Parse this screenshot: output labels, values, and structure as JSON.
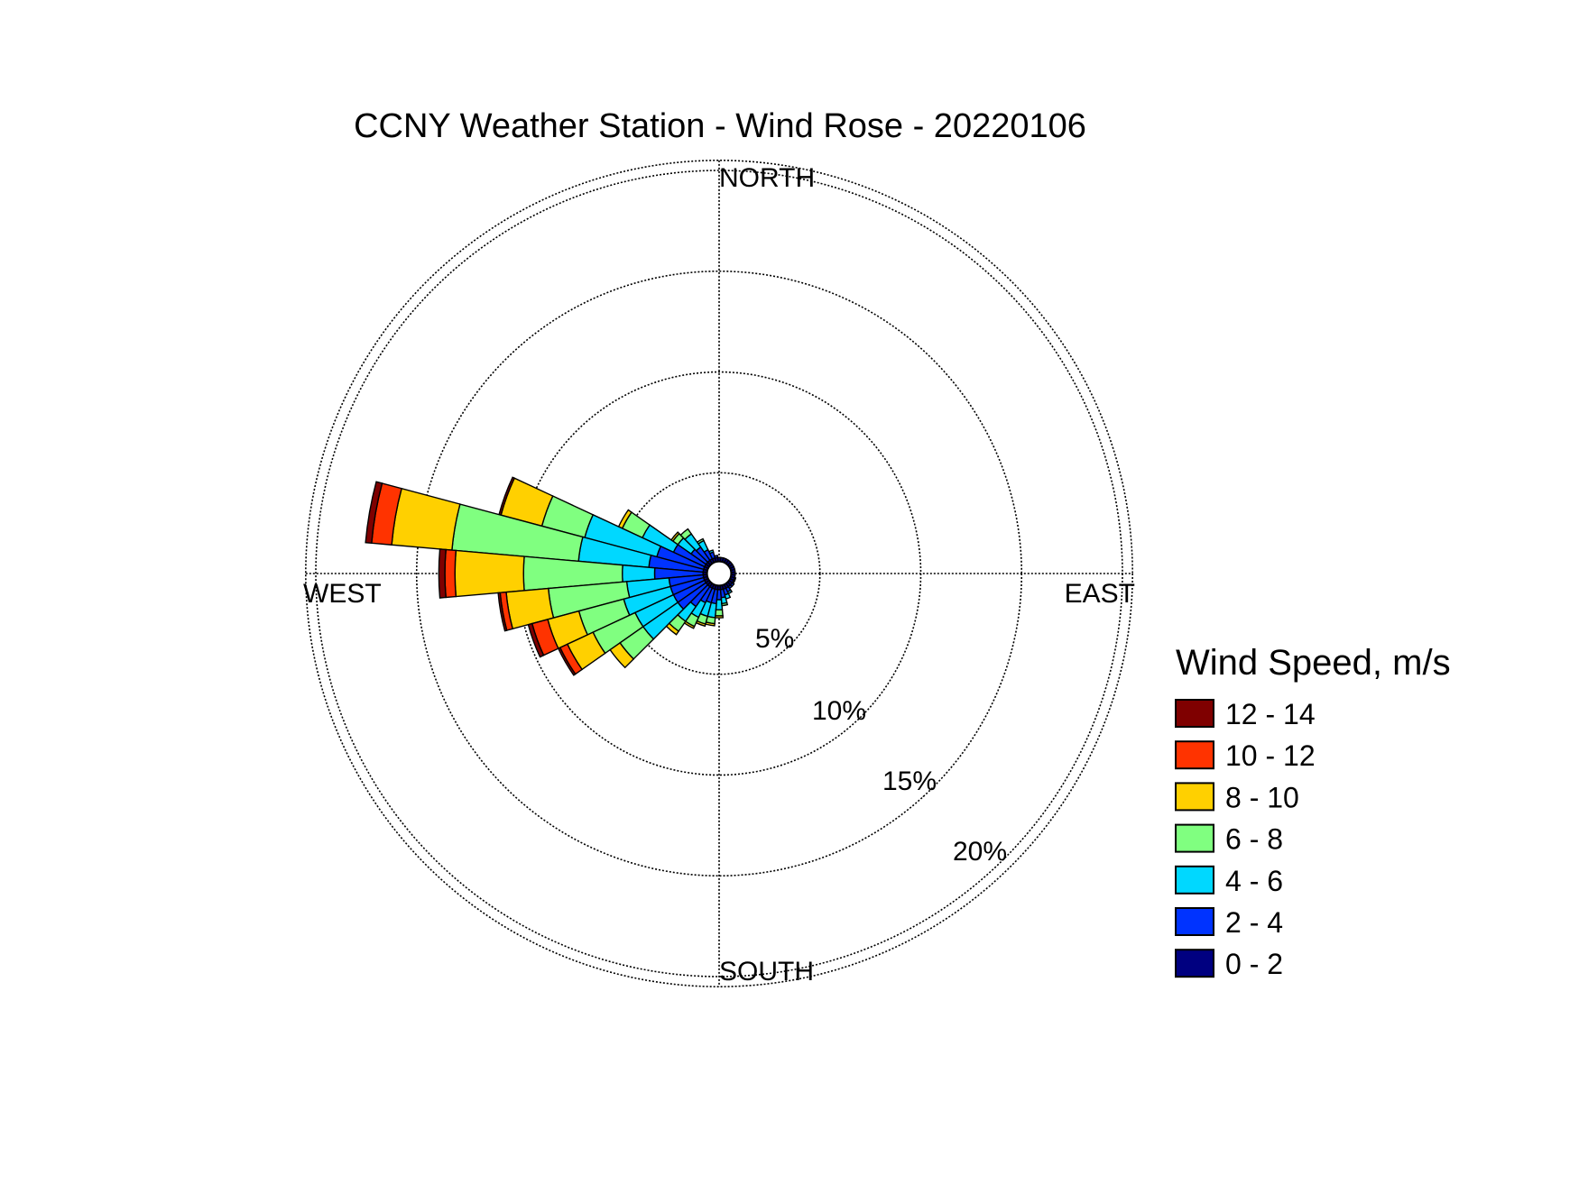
{
  "chart_data": {
    "type": "wind-rose",
    "title": "CCNY Weather Station - Wind Rose - 20220106",
    "directions": {
      "north": "NORTH",
      "south": "SOUTH",
      "east": "EAST",
      "west": "WEST"
    },
    "radial_axis": {
      "unit": "%",
      "range": [
        0,
        20
      ],
      "ticks": [
        5,
        10,
        15,
        20
      ],
      "tick_labels": [
        "5%",
        "10%",
        "15%",
        "20%"
      ],
      "outer_circle": 20.5,
      "calm_circle": 0.6,
      "grid": "dotted"
    },
    "sector_width_deg": 10,
    "legend": {
      "title": "Wind Speed, m/s",
      "placement": "right",
      "bins": [
        {
          "label": "12 - 14",
          "color": "#7f0000"
        },
        {
          "label": "10 - 12",
          "color": "#ff3300"
        },
        {
          "label": "8 - 10",
          "color": "#ffd000"
        },
        {
          "label": "6 - 8",
          "color": "#80ff80"
        },
        {
          "label": "4 - 6",
          "color": "#00d8ff"
        },
        {
          "label": "2 - 4",
          "color": "#0033ff"
        },
        {
          "label": "0 - 2",
          "color": "#000080"
        }
      ]
    },
    "series_order_inner_to_outer": [
      "0 - 2",
      "2 - 4",
      "4 - 6",
      "6 - 8",
      "8 - 10",
      "10 - 12",
      "12 - 14"
    ],
    "sectors": [
      {
        "bearing": 310,
        "cumulative": [
          0.8,
          1.7,
          2.5,
          2.8,
          2.9,
          2.9,
          2.9
        ]
      },
      {
        "bearing": 300,
        "cumulative": [
          0.8,
          2.5,
          4.2,
          5.3,
          5.5,
          5.5,
          5.5
        ]
      },
      {
        "bearing": 290,
        "cumulative": [
          0.8,
          3.2,
          6.9,
          9.1,
          11.2,
          11.2,
          11.3
        ]
      },
      {
        "bearing": 280,
        "cumulative": [
          0.8,
          3.5,
          7.0,
          13.3,
          16.3,
          17.3,
          17.6
        ]
      },
      {
        "bearing": 270,
        "cumulative": [
          0.8,
          3.2,
          4.8,
          9.7,
          13.1,
          13.6,
          13.9
        ]
      },
      {
        "bearing": 260,
        "cumulative": [
          0.8,
          2.5,
          4.6,
          8.5,
          10.6,
          10.9,
          11.0
        ]
      },
      {
        "bearing": 250,
        "cumulative": [
          0.8,
          2.5,
          4.9,
          7.2,
          8.8,
          9.6,
          9.8
        ]
      },
      {
        "bearing": 240,
        "cumulative": [
          0.8,
          2.5,
          4.6,
          6.9,
          8.3,
          8.7,
          8.8
        ]
      },
      {
        "bearing": 230,
        "cumulative": [
          0.8,
          2.5,
          4.6,
          6.0,
          6.6,
          6.6,
          6.6
        ]
      },
      {
        "bearing": 220,
        "cumulative": [
          0.8,
          2.0,
          2.9,
          3.5,
          3.7,
          3.7,
          3.7
        ]
      },
      {
        "bearing": 210,
        "cumulative": [
          0.8,
          1.6,
          2.4,
          2.9,
          3.0,
          3.0,
          3.0
        ]
      },
      {
        "bearing": 200,
        "cumulative": [
          0.8,
          1.5,
          2.2,
          2.6,
          2.7,
          2.7,
          2.7
        ]
      },
      {
        "bearing": 190,
        "cumulative": [
          0.8,
          1.5,
          2.2,
          2.5,
          2.6,
          2.6,
          2.6
        ]
      },
      {
        "bearing": 180,
        "cumulative": [
          0.8,
          1.3,
          1.8,
          2.1,
          2.2,
          2.2,
          2.2
        ]
      },
      {
        "bearing": 170,
        "cumulative": [
          0.8,
          1.2,
          1.5,
          1.6,
          1.6,
          1.6,
          1.6
        ]
      },
      {
        "bearing": 160,
        "cumulative": [
          0.8,
          1.1,
          1.3,
          1.3,
          1.3,
          1.3,
          1.3
        ]
      },
      {
        "bearing": 150,
        "cumulative": [
          0.8,
          1.0,
          1.1,
          1.1,
          1.1,
          1.1,
          1.1
        ]
      },
      {
        "bearing": 140,
        "cumulative": [
          0.8,
          0.9,
          0.9,
          0.9,
          0.9,
          0.9,
          0.9
        ]
      },
      {
        "bearing": 130,
        "cumulative": [
          0.8,
          0.9,
          0.9,
          0.9,
          0.9,
          0.9,
          0.9
        ]
      },
      {
        "bearing": 120,
        "cumulative": [
          0.8,
          0.85,
          0.85,
          0.85,
          0.85,
          0.85,
          0.85
        ]
      },
      {
        "bearing": 110,
        "cumulative": [
          0.8,
          0.85,
          0.85,
          0.85,
          0.85,
          0.85,
          0.85
        ]
      },
      {
        "bearing": 100,
        "cumulative": [
          0.8,
          0.8,
          0.8,
          0.8,
          0.8,
          0.8,
          0.8
        ]
      },
      {
        "bearing": 90,
        "cumulative": [
          0.8,
          0.8,
          0.8,
          0.8,
          0.8,
          0.8,
          0.8
        ]
      },
      {
        "bearing": 80,
        "cumulative": [
          0.8,
          0.8,
          0.8,
          0.8,
          0.8,
          0.8,
          0.8
        ]
      },
      {
        "bearing": 70,
        "cumulative": [
          0.8,
          0.8,
          0.8,
          0.8,
          0.8,
          0.8,
          0.8
        ]
      },
      {
        "bearing": 60,
        "cumulative": [
          0.8,
          0.8,
          0.8,
          0.8,
          0.8,
          0.8,
          0.8
        ]
      },
      {
        "bearing": 50,
        "cumulative": [
          0.8,
          0.8,
          0.8,
          0.8,
          0.8,
          0.8,
          0.8
        ]
      },
      {
        "bearing": 40,
        "cumulative": [
          0.8,
          0.8,
          0.8,
          0.8,
          0.8,
          0.8,
          0.8
        ]
      },
      {
        "bearing": 30,
        "cumulative": [
          0.8,
          0.8,
          0.8,
          0.8,
          0.8,
          0.8,
          0.8
        ]
      },
      {
        "bearing": 20,
        "cumulative": [
          0.8,
          0.8,
          0.8,
          0.8,
          0.8,
          0.8,
          0.8
        ]
      },
      {
        "bearing": 10,
        "cumulative": [
          0.8,
          0.8,
          0.8,
          0.8,
          0.8,
          0.8,
          0.8
        ]
      },
      {
        "bearing": 0,
        "cumulative": [
          0.8,
          0.8,
          0.8,
          0.8,
          0.8,
          0.8,
          0.8
        ]
      },
      {
        "bearing": 350,
        "cumulative": [
          0.8,
          0.9,
          0.9,
          0.9,
          0.9,
          0.9,
          0.9
        ]
      },
      {
        "bearing": 340,
        "cumulative": [
          0.8,
          1.1,
          1.2,
          1.2,
          1.2,
          1.2,
          1.2
        ]
      },
      {
        "bearing": 330,
        "cumulative": [
          0.8,
          1.3,
          1.8,
          1.9,
          1.9,
          1.9,
          1.9
        ]
      },
      {
        "bearing": 320,
        "cumulative": [
          0.8,
          1.6,
          2.4,
          2.7,
          2.7,
          2.7,
          2.7
        ]
      }
    ]
  }
}
